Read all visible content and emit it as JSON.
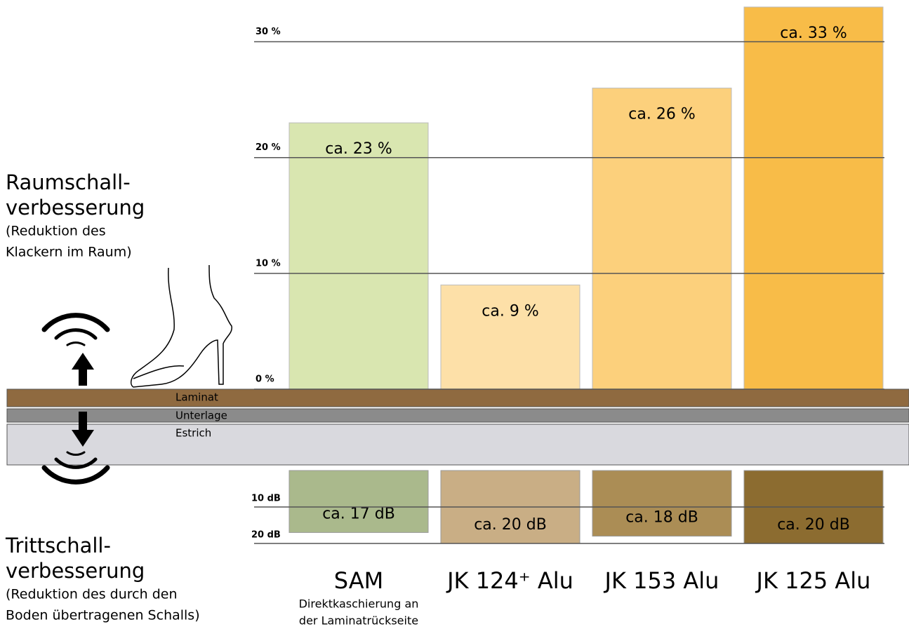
{
  "chart_data": {
    "type": "bar",
    "categories": [
      "SAM",
      "JK 124⁺ Alu",
      "JK 153 Alu",
      "JK 125 Alu"
    ],
    "category_note": {
      "category": 0,
      "lines": [
        "Direktkaschierung an",
        "der Laminatrückseite"
      ]
    },
    "ylim": [
      0,
      33
    ],
    "yticks": [
      {
        "value": 0,
        "label": "0 %"
      },
      {
        "value": 10,
        "label": "10 %"
      },
      {
        "value": 20,
        "label": "20 %"
      },
      {
        "value": 30,
        "label": "30 %"
      }
    ],
    "y2lim": [
      0,
      20
    ],
    "y2ticks": [
      {
        "value": 10,
        "label": "10 dB"
      },
      {
        "value": 20,
        "label": "20 dB"
      }
    ],
    "grid": true,
    "series": [
      {
        "name": "Raumschallverbesserung",
        "axis": "y",
        "colors": [
          "#d9e6b0",
          "#fde0a8",
          "#fcd07c",
          "#f8bc48"
        ],
        "title_lines": [
          "Raumschall-",
          "verbesserung"
        ],
        "subtitle_lines": [
          "(Reduktion des",
          "Klackern im Raum)"
        ],
        "values": [
          23,
          9,
          26,
          33
        ],
        "value_labels": [
          "ca. 23 %",
          "ca. 9 %",
          "ca. 26 %",
          "ca. 33 %"
        ]
      },
      {
        "name": "Trittschallverbesserung",
        "axis": "y2",
        "colors": [
          "#aab98c",
          "#c9ae85",
          "#ab8d55",
          "#8c6c30"
        ],
        "title_lines": [
          "Trittschall-",
          "verbesserung"
        ],
        "subtitle_lines": [
          "(Reduktion des durch den",
          "Boden übertragenen Schalls)"
        ],
        "values": [
          17,
          20,
          18,
          20
        ],
        "value_labels": [
          "ca. 17 dB",
          "ca. 20 dB",
          "ca. 18 dB",
          "ca. 20 dB"
        ]
      }
    ],
    "layers": [
      "Laminat",
      "Unterlage",
      "Estrich"
    ]
  }
}
